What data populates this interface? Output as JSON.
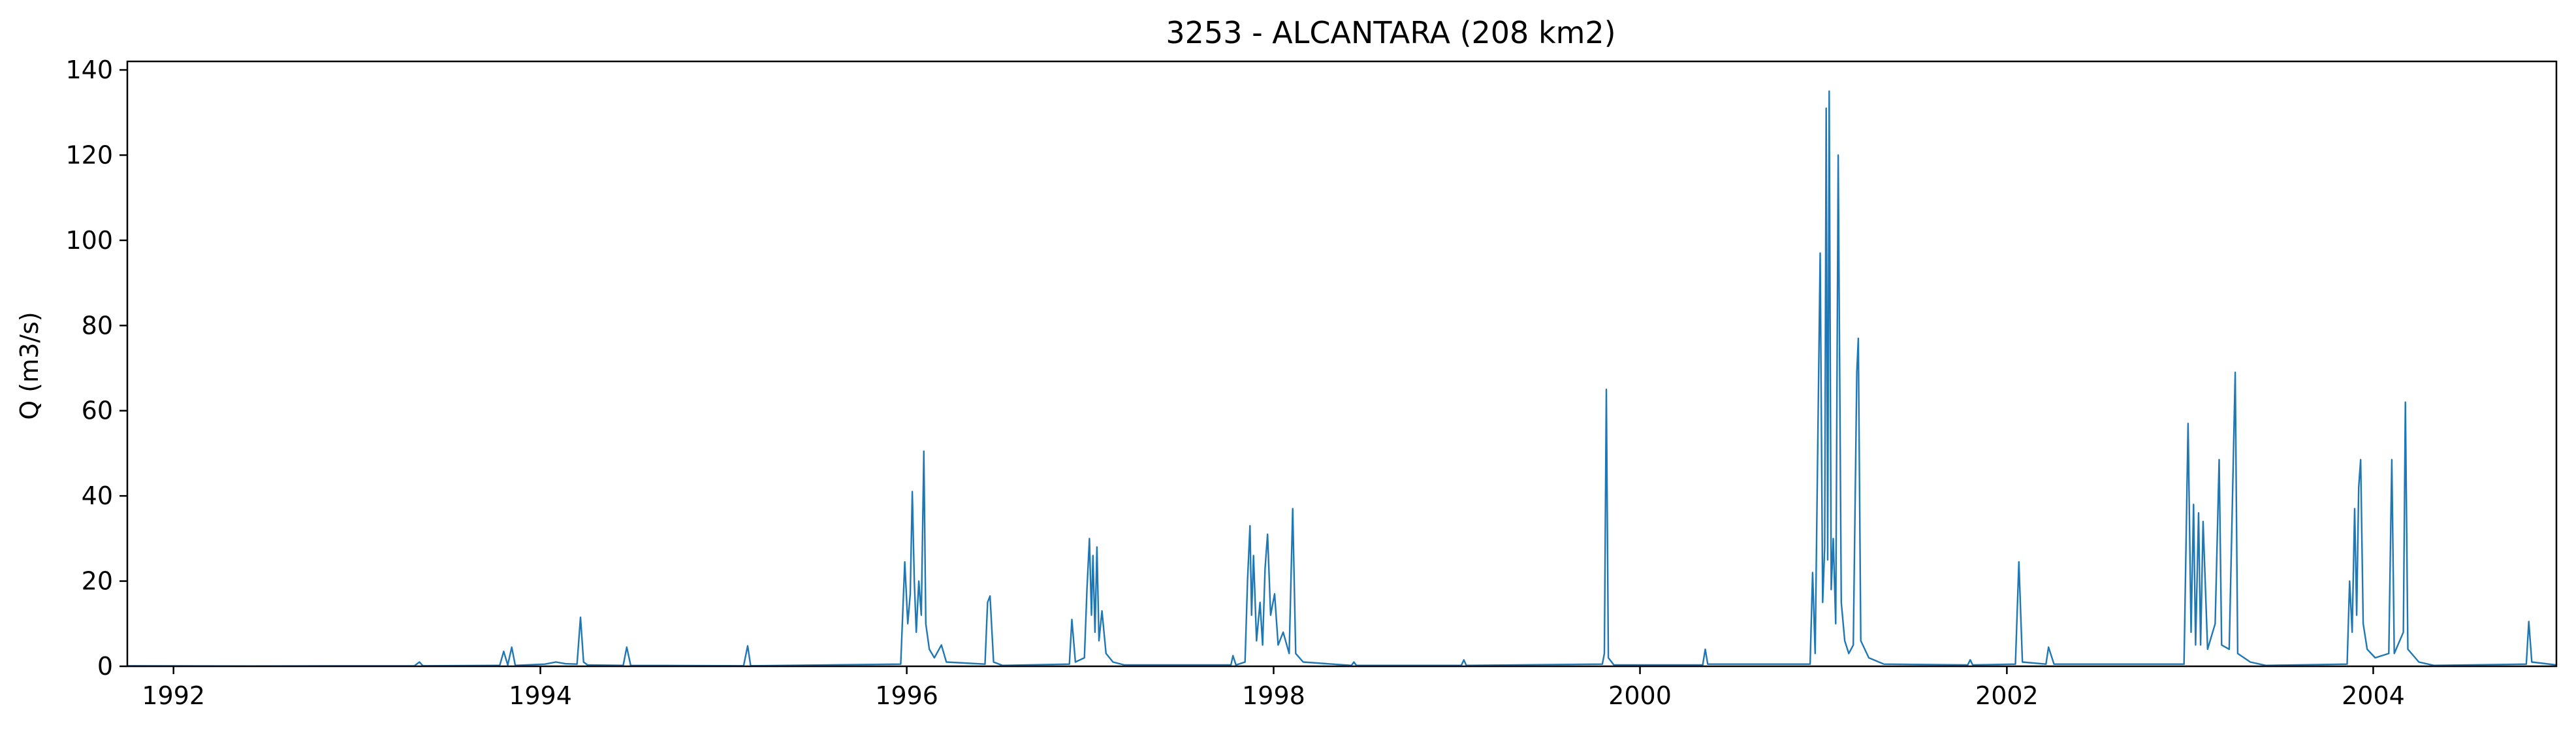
{
  "chart_data": {
    "type": "line",
    "title": "3253 - ALCANTARA (208 km2)",
    "xlabel": "",
    "ylabel": "Q (m3/s)",
    "x_axis": "date",
    "xlim": [
      "1991-10-01",
      "2004-12-31"
    ],
    "ylim": [
      0,
      142
    ],
    "xticks": [
      "1992",
      "1994",
      "1996",
      "1998",
      "2000",
      "2002",
      "2004"
    ],
    "yticks": [
      0,
      20,
      40,
      60,
      80,
      100,
      120,
      140
    ],
    "grid": false,
    "line_color": "#1f77b4",
    "series": [
      {
        "points": [
          [
            "1991-10-01",
            0.1
          ],
          [
            "1992-06-01",
            0.05
          ],
          [
            "1993-04-25",
            0.1
          ],
          [
            "1993-05-05",
            1.0
          ],
          [
            "1993-05-12",
            0.1
          ],
          [
            "1993-10-12",
            0.2
          ],
          [
            "1993-10-20",
            3.5
          ],
          [
            "1993-10-28",
            0.3
          ],
          [
            "1993-11-05",
            4.5
          ],
          [
            "1993-11-12",
            0.2
          ],
          [
            "1994-01-10",
            0.5
          ],
          [
            "1994-02-01",
            1.0
          ],
          [
            "1994-02-20",
            0.6
          ],
          [
            "1994-03-15",
            0.5
          ],
          [
            "1994-03-22",
            11.5
          ],
          [
            "1994-03-28",
            1.0
          ],
          [
            "1994-04-05",
            0.3
          ],
          [
            "1994-06-15",
            0.2
          ],
          [
            "1994-06-22",
            4.5
          ],
          [
            "1994-06-30",
            0.2
          ],
          [
            "1995-02-10",
            0.1
          ],
          [
            "1995-02-18",
            4.8
          ],
          [
            "1995-02-24",
            0.1
          ],
          [
            "1995-12-20",
            0.5
          ],
          [
            "1995-12-28",
            24.5
          ],
          [
            "1996-01-03",
            10.0
          ],
          [
            "1996-01-08",
            17.0
          ],
          [
            "1996-01-12",
            41.0
          ],
          [
            "1996-01-16",
            20.0
          ],
          [
            "1996-01-20",
            8.0
          ],
          [
            "1996-01-25",
            20.0
          ],
          [
            "1996-01-30",
            12.0
          ],
          [
            "1996-02-04",
            50.5
          ],
          [
            "1996-02-08",
            10.0
          ],
          [
            "1996-02-15",
            4.0
          ],
          [
            "1996-02-25",
            2.0
          ],
          [
            "1996-03-10",
            5.0
          ],
          [
            "1996-03-20",
            1.0
          ],
          [
            "1996-06-05",
            0.5
          ],
          [
            "1996-06-10",
            15.0
          ],
          [
            "1996-06-15",
            16.5
          ],
          [
            "1996-06-22",
            1.0
          ],
          [
            "1996-07-10",
            0.2
          ],
          [
            "1996-11-20",
            0.5
          ],
          [
            "1996-11-25",
            11.0
          ],
          [
            "1996-12-02",
            1.0
          ],
          [
            "1996-12-20",
            2.0
          ],
          [
            "1996-12-25",
            18.0
          ],
          [
            "1996-12-30",
            30.0
          ],
          [
            "1997-01-03",
            12.0
          ],
          [
            "1997-01-06",
            26.0
          ],
          [
            "1997-01-10",
            8.0
          ],
          [
            "1997-01-14",
            28.0
          ],
          [
            "1997-01-18",
            6.0
          ],
          [
            "1997-01-24",
            13.0
          ],
          [
            "1997-02-01",
            3.0
          ],
          [
            "1997-02-15",
            1.0
          ],
          [
            "1997-03-10",
            0.3
          ],
          [
            "1997-10-08",
            0.3
          ],
          [
            "1997-10-12",
            2.5
          ],
          [
            "1997-10-18",
            0.3
          ],
          [
            "1997-11-05",
            1.0
          ],
          [
            "1997-11-10",
            20.0
          ],
          [
            "1997-11-15",
            33.0
          ],
          [
            "1997-11-18",
            12.0
          ],
          [
            "1997-11-22",
            26.0
          ],
          [
            "1997-11-28",
            6.0
          ],
          [
            "1997-12-05",
            15.0
          ],
          [
            "1997-12-10",
            5.0
          ],
          [
            "1997-12-15",
            23.0
          ],
          [
            "1997-12-20",
            31.0
          ],
          [
            "1997-12-26",
            12.0
          ],
          [
            "1998-01-03",
            17.0
          ],
          [
            "1998-01-10",
            5.0
          ],
          [
            "1998-01-20",
            8.0
          ],
          [
            "1998-02-01",
            3.0
          ],
          [
            "1998-02-08",
            37.0
          ],
          [
            "1998-02-14",
            3.0
          ],
          [
            "1998-03-01",
            1.0
          ],
          [
            "1998-06-05",
            0.2
          ],
          [
            "1998-06-10",
            1.0
          ],
          [
            "1998-06-15",
            0.2
          ],
          [
            "1999-01-10",
            0.2
          ],
          [
            "1999-01-15",
            1.5
          ],
          [
            "1999-01-20",
            0.2
          ],
          [
            "1999-10-18",
            0.5
          ],
          [
            "1999-10-22",
            3.0
          ],
          [
            "1999-10-26",
            65.0
          ],
          [
            "1999-10-30",
            2.0
          ],
          [
            "1999-11-10",
            0.3
          ],
          [
            "2000-05-05",
            0.3
          ],
          [
            "2000-05-10",
            4.0
          ],
          [
            "2000-05-15",
            0.5
          ],
          [
            "2000-12-05",
            0.5
          ],
          [
            "2000-12-10",
            22.0
          ],
          [
            "2000-12-15",
            3.0
          ],
          [
            "2000-12-25",
            97.0
          ],
          [
            "2000-12-30",
            15.0
          ],
          [
            "2001-01-03",
            28.0
          ],
          [
            "2001-01-06",
            131.0
          ],
          [
            "2001-01-09",
            25.0
          ],
          [
            "2001-01-12",
            135.0
          ],
          [
            "2001-01-16",
            18.0
          ],
          [
            "2001-01-20",
            30.0
          ],
          [
            "2001-01-25",
            10.0
          ],
          [
            "2001-01-30",
            120.0
          ],
          [
            "2001-02-05",
            15.0
          ],
          [
            "2001-02-12",
            6.0
          ],
          [
            "2001-02-20",
            3.0
          ],
          [
            "2001-03-01",
            5.0
          ],
          [
            "2001-03-08",
            69.0
          ],
          [
            "2001-03-11",
            77.0
          ],
          [
            "2001-03-16",
            6.0
          ],
          [
            "2001-04-01",
            2.0
          ],
          [
            "2001-05-01",
            0.5
          ],
          [
            "2001-10-15",
            0.3
          ],
          [
            "2001-10-20",
            1.5
          ],
          [
            "2001-10-25",
            0.3
          ],
          [
            "2002-01-18",
            0.5
          ],
          [
            "2002-01-25",
            24.5
          ],
          [
            "2002-02-01",
            1.0
          ],
          [
            "2002-03-20",
            0.5
          ],
          [
            "2002-03-25",
            4.5
          ],
          [
            "2002-04-05",
            0.5
          ],
          [
            "2002-12-20",
            0.5
          ],
          [
            "2002-12-28",
            57.0
          ],
          [
            "2003-01-03",
            8.0
          ],
          [
            "2003-01-08",
            38.0
          ],
          [
            "2003-01-12",
            5.0
          ],
          [
            "2003-01-18",
            36.0
          ],
          [
            "2003-01-22",
            5.0
          ],
          [
            "2003-01-27",
            34.0
          ],
          [
            "2003-02-05",
            4.0
          ],
          [
            "2003-02-20",
            10.0
          ],
          [
            "2003-02-28",
            48.5
          ],
          [
            "2003-03-05",
            5.0
          ],
          [
            "2003-03-20",
            4.0
          ],
          [
            "2003-04-01",
            69.0
          ],
          [
            "2003-04-06",
            3.0
          ],
          [
            "2003-05-01",
            1.0
          ],
          [
            "2003-06-01",
            0.2
          ],
          [
            "2003-11-10",
            0.5
          ],
          [
            "2003-11-15",
            20.0
          ],
          [
            "2003-11-20",
            8.0
          ],
          [
            "2003-11-25",
            37.0
          ],
          [
            "2003-11-29",
            12.0
          ],
          [
            "2003-12-03",
            42.0
          ],
          [
            "2003-12-07",
            48.5
          ],
          [
            "2003-12-12",
            10.0
          ],
          [
            "2003-12-20",
            4.0
          ],
          [
            "2004-01-05",
            2.0
          ],
          [
            "2004-02-01",
            3.0
          ],
          [
            "2004-02-07",
            48.5
          ],
          [
            "2004-02-12",
            3.0
          ],
          [
            "2004-03-01",
            8.0
          ],
          [
            "2004-03-05",
            62.0
          ],
          [
            "2004-03-10",
            4.0
          ],
          [
            "2004-04-01",
            1.0
          ],
          [
            "2004-05-01",
            0.2
          ],
          [
            "2004-11-01",
            0.5
          ],
          [
            "2004-11-06",
            10.5
          ],
          [
            "2004-11-12",
            1.0
          ],
          [
            "2004-12-31",
            0.3
          ]
        ]
      }
    ]
  }
}
